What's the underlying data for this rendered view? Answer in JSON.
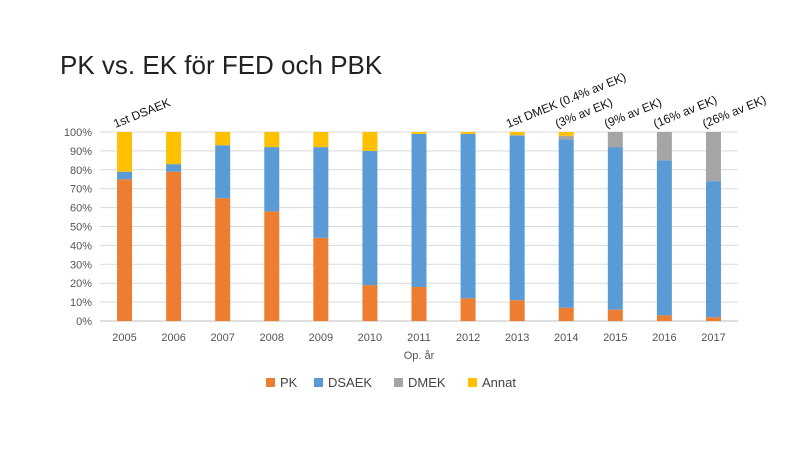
{
  "slide": {
    "title": "PK vs. EK för FED och PBK"
  },
  "chart_data": {
    "type": "bar",
    "stacked": true,
    "percent": true,
    "title": "PK vs. EK för FED och PBK",
    "xlabel": "Op. år",
    "ylabel": "",
    "ylim": [
      0,
      100
    ],
    "yticks": [
      "0%",
      "10%",
      "20%",
      "30%",
      "40%",
      "50%",
      "60%",
      "70%",
      "80%",
      "90%",
      "100%"
    ],
    "categories": [
      "2005",
      "2006",
      "2007",
      "2008",
      "2009",
      "2010",
      "2011",
      "2012",
      "2013",
      "2014",
      "2015",
      "2016",
      "2017"
    ],
    "series": [
      {
        "name": "PK",
        "color": "#ED7D31",
        "values": [
          75,
          79,
          65,
          58,
          44,
          19,
          18,
          12,
          11,
          7,
          6,
          3,
          2
        ]
      },
      {
        "name": "DSAEK",
        "color": "#5B9BD5",
        "values": [
          4,
          4,
          28,
          34,
          48,
          71,
          81,
          87,
          87,
          89,
          86,
          82,
          72
        ]
      },
      {
        "name": "DMEK",
        "color": "#A5A5A5",
        "values": [
          0,
          0,
          0,
          0,
          0,
          0,
          0,
          0,
          0.4,
          2,
          8,
          15,
          26
        ]
      },
      {
        "name": "Annat",
        "color": "#FFC000",
        "values": [
          21,
          17,
          7,
          8,
          8,
          10,
          1,
          1,
          1.6,
          2,
          0,
          0,
          0
        ]
      }
    ],
    "grid": true,
    "legend_position": "bottom",
    "annotations": [
      {
        "category": "2005",
        "text": "1st DSAEK"
      },
      {
        "category": "2013",
        "text": "1st DMEK (0.4% av EK)"
      },
      {
        "category": "2014",
        "text": "(3% av EK)"
      },
      {
        "category": "2015",
        "text": "(9% av EK)"
      },
      {
        "category": "2016",
        "text": "(16% av EK)"
      },
      {
        "category": "2017",
        "text": "(26% av EK)"
      }
    ]
  }
}
